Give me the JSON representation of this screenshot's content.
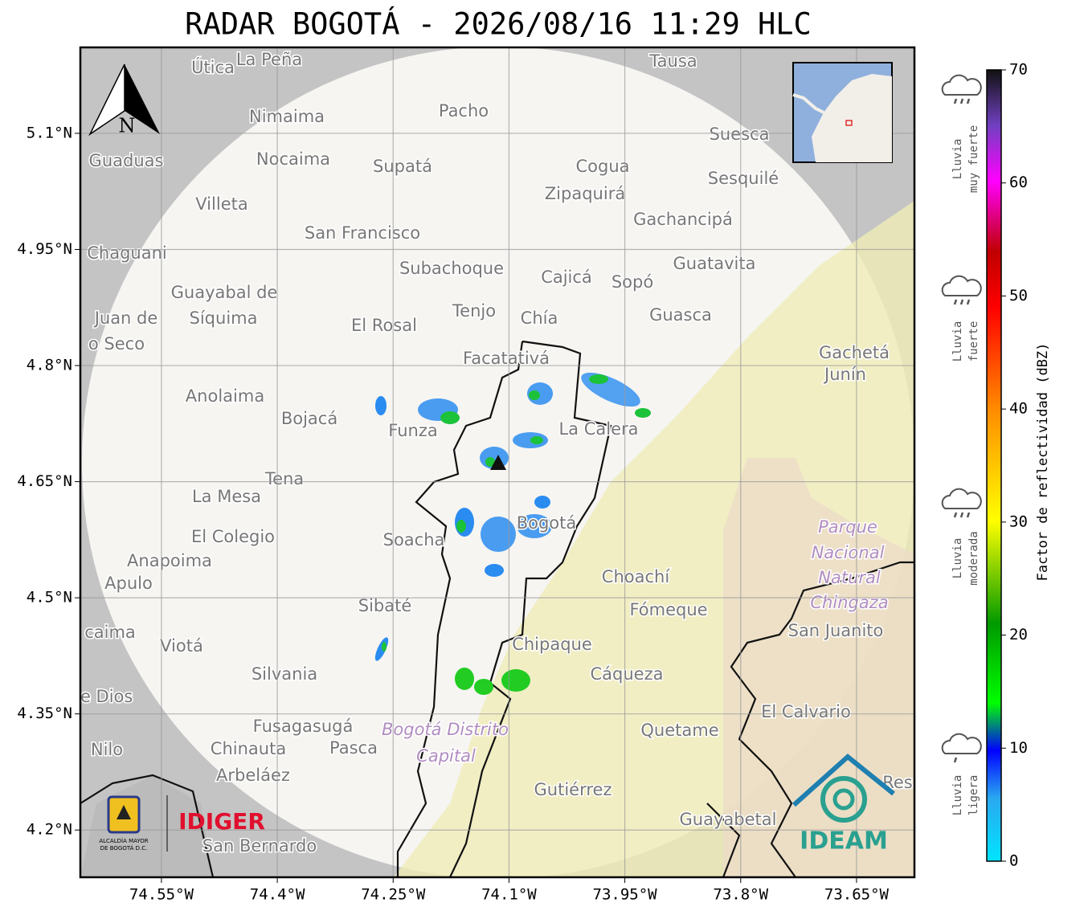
{
  "title": "RADAR BOGOTÁ - 2026/08/16 11:29 HLC",
  "map": {
    "xlim": [
      -74.655,
      -73.575
    ],
    "ylim": [
      4.139,
      5.211
    ],
    "xticks": [
      {
        "value": -74.55,
        "label": "74.55°W"
      },
      {
        "value": -74.4,
        "label": "74.4°W"
      },
      {
        "value": -74.25,
        "label": "74.25°W"
      },
      {
        "value": -74.1,
        "label": "74.1°W"
      },
      {
        "value": -73.95,
        "label": "73.95°W"
      },
      {
        "value": -73.8,
        "label": "73.8°W"
      },
      {
        "value": -73.65,
        "label": "73.65°W"
      }
    ],
    "yticks": [
      {
        "value": 5.1,
        "label": "5.1°N"
      },
      {
        "value": 4.95,
        "label": "4.95°N"
      },
      {
        "value": 4.8,
        "label": "4.8°N"
      },
      {
        "value": 4.65,
        "label": "4.65°N"
      },
      {
        "value": 4.5,
        "label": "4.5°N"
      },
      {
        "value": 4.35,
        "label": "4.35°N"
      },
      {
        "value": 4.2,
        "label": "4.2°N"
      }
    ],
    "north": "N",
    "places": [
      "Útica",
      "La Peña",
      "Tausa",
      "Pacho",
      "Nimaima",
      "Suesca",
      "Guaduas",
      "Nocaima",
      "Supatá",
      "Cogua",
      "Sesquilé",
      "Zipaquirá",
      "Villeta",
      "Gachancipá",
      "San Francisco",
      "Chaguani",
      "Guatavita",
      "Subachoque",
      "Cajicá",
      "Sopó",
      "Guayabal de",
      "Síquima",
      "Tenjo",
      "Guasca",
      "Juan de",
      "Chía",
      "El Rosal",
      "o Seco",
      "Facatativá",
      "Gachetá",
      "Junín",
      "Anolaima",
      "Bojacá",
      "Funza",
      "La Calera",
      "Tena",
      "La Mesa",
      "Parque",
      "Bogotá",
      "Soacha",
      "El Colegio",
      "Nacional",
      "Anapoima",
      "Apulo",
      "Natural",
      "Choachí",
      "Chingaza",
      "Sibaté",
      "Fómeque",
      "San Juanito",
      "caima",
      "Viotá",
      "Chipaque",
      "Silvania",
      "Cáqueza",
      "de Dios",
      "El Calvario",
      "Fusagasugá",
      "Bogotá Distrito",
      "Quetame",
      "Nilo",
      "Chinauta",
      "Pasca",
      "Capital",
      "Arbeláez",
      "Gutiérrez",
      "Res",
      "Guayabetal",
      "San Bernardo"
    ]
  },
  "colorbar": {
    "label": "Factor de reflectividad (dBZ)",
    "lim": [
      0,
      70
    ],
    "ticks": [
      0,
      10,
      20,
      30,
      40,
      50,
      60,
      70
    ],
    "categories": [
      [
        "Lluvia",
        "muy fuerte"
      ],
      [
        "Lluvia",
        "fuerte"
      ],
      [
        "Lluvia",
        "moderada"
      ],
      [
        "Lluvia",
        "ligera"
      ]
    ]
  },
  "logos": {
    "alcaldia": [
      "ALCALDÍA MAYOR",
      "DE BOGOTÁ D.C."
    ],
    "idiger": "IDIGER",
    "ideam": "IDEAM"
  }
}
